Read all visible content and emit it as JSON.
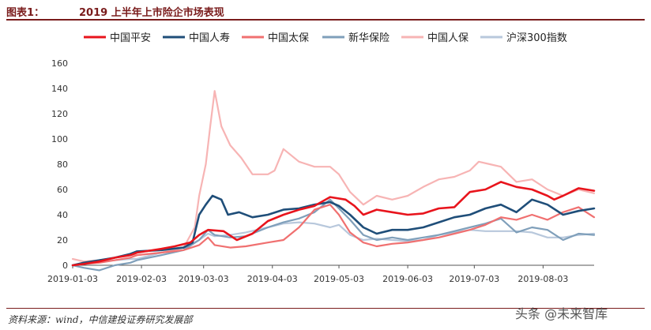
{
  "header": {
    "figure_label": "图表1：",
    "title": "2019 上半年上市险企市场表现"
  },
  "footer": {
    "source": "资料来源：wind，中信建投证券研究发展部",
    "watermark": "头条 @未来智库"
  },
  "chart_data": {
    "type": "line",
    "ylim": [
      0,
      160
    ],
    "yticks": [
      0,
      20,
      40,
      60,
      80,
      100,
      120,
      140,
      160
    ],
    "xlim": [
      "2019-01-03",
      "2019-08-26"
    ],
    "xticks": [
      "2019-01-03",
      "2019-02-03",
      "2019-03-03",
      "2019-04-03",
      "2019-05-03",
      "2019-06-03",
      "2019-07-03",
      "2019-08-03"
    ],
    "legend_position": "top",
    "grid": false,
    "series": [
      {
        "name": "中国平安",
        "color": "#e8141c",
        "width": 2.6,
        "points": [
          [
            "2019-01-03",
            0
          ],
          [
            "2019-01-08",
            1
          ],
          [
            "2019-01-15",
            3
          ],
          [
            "2019-01-22",
            6
          ],
          [
            "2019-01-29",
            8
          ],
          [
            "2019-02-01",
            10
          ],
          [
            "2019-02-12",
            13
          ],
          [
            "2019-02-18",
            15
          ],
          [
            "2019-02-25",
            18
          ],
          [
            "2019-03-01",
            24
          ],
          [
            "2019-03-05",
            28
          ],
          [
            "2019-03-12",
            27
          ],
          [
            "2019-03-18",
            20
          ],
          [
            "2019-03-25",
            25
          ],
          [
            "2019-04-01",
            35
          ],
          [
            "2019-04-08",
            40
          ],
          [
            "2019-04-15",
            44
          ],
          [
            "2019-04-22",
            47
          ],
          [
            "2019-04-29",
            54
          ],
          [
            "2019-05-06",
            52
          ],
          [
            "2019-05-10",
            47
          ],
          [
            "2019-05-14",
            40
          ],
          [
            "2019-05-20",
            44
          ],
          [
            "2019-05-27",
            42
          ],
          [
            "2019-06-03",
            40
          ],
          [
            "2019-06-10",
            41
          ],
          [
            "2019-06-17",
            45
          ],
          [
            "2019-06-24",
            46
          ],
          [
            "2019-07-01",
            58
          ],
          [
            "2019-07-08",
            60
          ],
          [
            "2019-07-15",
            66
          ],
          [
            "2019-07-22",
            62
          ],
          [
            "2019-07-29",
            60
          ],
          [
            "2019-08-05",
            55
          ],
          [
            "2019-08-08",
            52
          ],
          [
            "2019-08-12",
            55
          ],
          [
            "2019-08-19",
            61
          ],
          [
            "2019-08-26",
            59
          ]
        ]
      },
      {
        "name": "中国人寿",
        "color": "#1f4e79",
        "width": 2.6,
        "points": [
          [
            "2019-01-03",
            0
          ],
          [
            "2019-01-08",
            2
          ],
          [
            "2019-01-15",
            4
          ],
          [
            "2019-01-22",
            6
          ],
          [
            "2019-01-29",
            9
          ],
          [
            "2019-02-01",
            11
          ],
          [
            "2019-02-12",
            12
          ],
          [
            "2019-02-22",
            14
          ],
          [
            "2019-02-26",
            18
          ],
          [
            "2019-03-01",
            40
          ],
          [
            "2019-03-04",
            48
          ],
          [
            "2019-03-07",
            55
          ],
          [
            "2019-03-11",
            52
          ],
          [
            "2019-03-14",
            40
          ],
          [
            "2019-03-19",
            42
          ],
          [
            "2019-03-25",
            38
          ],
          [
            "2019-04-01",
            40
          ],
          [
            "2019-04-08",
            44
          ],
          [
            "2019-04-15",
            45
          ],
          [
            "2019-04-22",
            48
          ],
          [
            "2019-04-29",
            50
          ],
          [
            "2019-05-03",
            47
          ],
          [
            "2019-05-08",
            40
          ],
          [
            "2019-05-14",
            30
          ],
          [
            "2019-05-20",
            25
          ],
          [
            "2019-05-27",
            28
          ],
          [
            "2019-06-03",
            28
          ],
          [
            "2019-06-10",
            30
          ],
          [
            "2019-06-17",
            34
          ],
          [
            "2019-06-24",
            38
          ],
          [
            "2019-07-01",
            40
          ],
          [
            "2019-07-08",
            45
          ],
          [
            "2019-07-15",
            48
          ],
          [
            "2019-07-22",
            42
          ],
          [
            "2019-07-29",
            52
          ],
          [
            "2019-08-05",
            48
          ],
          [
            "2019-08-12",
            40
          ],
          [
            "2019-08-19",
            43
          ],
          [
            "2019-08-26",
            45
          ]
        ]
      },
      {
        "name": "中国太保",
        "color": "#f07070",
        "width": 2.2,
        "points": [
          [
            "2019-01-03",
            0
          ],
          [
            "2019-01-08",
            1
          ],
          [
            "2019-01-15",
            2
          ],
          [
            "2019-01-22",
            4
          ],
          [
            "2019-01-29",
            6
          ],
          [
            "2019-02-01",
            8
          ],
          [
            "2019-02-12",
            10
          ],
          [
            "2019-02-22",
            12
          ],
          [
            "2019-03-01",
            16
          ],
          [
            "2019-03-05",
            22
          ],
          [
            "2019-03-08",
            16
          ],
          [
            "2019-03-15",
            14
          ],
          [
            "2019-03-22",
            15
          ],
          [
            "2019-04-01",
            18
          ],
          [
            "2019-04-08",
            20
          ],
          [
            "2019-04-15",
            30
          ],
          [
            "2019-04-22",
            44
          ],
          [
            "2019-04-29",
            48
          ],
          [
            "2019-05-03",
            40
          ],
          [
            "2019-05-08",
            26
          ],
          [
            "2019-05-14",
            18
          ],
          [
            "2019-05-20",
            15
          ],
          [
            "2019-05-27",
            17
          ],
          [
            "2019-06-03",
            18
          ],
          [
            "2019-06-10",
            20
          ],
          [
            "2019-06-17",
            22
          ],
          [
            "2019-06-24",
            25
          ],
          [
            "2019-07-01",
            28
          ],
          [
            "2019-07-08",
            32
          ],
          [
            "2019-07-15",
            38
          ],
          [
            "2019-07-22",
            36
          ],
          [
            "2019-07-29",
            40
          ],
          [
            "2019-08-05",
            36
          ],
          [
            "2019-08-12",
            42
          ],
          [
            "2019-08-19",
            46
          ],
          [
            "2019-08-26",
            38
          ]
        ]
      },
      {
        "name": "新华保险",
        "color": "#7f9fba",
        "width": 2.2,
        "points": [
          [
            "2019-01-03",
            0
          ],
          [
            "2019-01-08",
            -2
          ],
          [
            "2019-01-15",
            -4
          ],
          [
            "2019-01-22",
            0
          ],
          [
            "2019-01-29",
            2
          ],
          [
            "2019-02-01",
            4
          ],
          [
            "2019-02-12",
            8
          ],
          [
            "2019-02-22",
            12
          ],
          [
            "2019-03-01",
            20
          ],
          [
            "2019-03-05",
            28
          ],
          [
            "2019-03-08",
            24
          ],
          [
            "2019-03-15",
            22
          ],
          [
            "2019-03-22",
            23
          ],
          [
            "2019-04-01",
            30
          ],
          [
            "2019-04-08",
            34
          ],
          [
            "2019-04-15",
            37
          ],
          [
            "2019-04-22",
            42
          ],
          [
            "2019-04-29",
            52
          ],
          [
            "2019-05-03",
            45
          ],
          [
            "2019-05-08",
            36
          ],
          [
            "2019-05-14",
            24
          ],
          [
            "2019-05-20",
            20
          ],
          [
            "2019-05-27",
            22
          ],
          [
            "2019-06-03",
            20
          ],
          [
            "2019-06-10",
            22
          ],
          [
            "2019-06-17",
            24
          ],
          [
            "2019-06-24",
            27
          ],
          [
            "2019-07-01",
            30
          ],
          [
            "2019-07-08",
            33
          ],
          [
            "2019-07-15",
            37
          ],
          [
            "2019-07-22",
            26
          ],
          [
            "2019-07-29",
            30
          ],
          [
            "2019-08-05",
            28
          ],
          [
            "2019-08-12",
            20
          ],
          [
            "2019-08-19",
            25
          ],
          [
            "2019-08-26",
            24
          ]
        ]
      },
      {
        "name": "中国人保",
        "color": "#f7b4b4",
        "width": 2.2,
        "points": [
          [
            "2019-01-03",
            5
          ],
          [
            "2019-01-08",
            3
          ],
          [
            "2019-01-15",
            4
          ],
          [
            "2019-01-22",
            6
          ],
          [
            "2019-01-29",
            8
          ],
          [
            "2019-02-01",
            8
          ],
          [
            "2019-02-12",
            10
          ],
          [
            "2019-02-22",
            14
          ],
          [
            "2019-02-27",
            30
          ],
          [
            "2019-03-01",
            55
          ],
          [
            "2019-03-04",
            80
          ],
          [
            "2019-03-06",
            110
          ],
          [
            "2019-03-08",
            138
          ],
          [
            "2019-03-11",
            110
          ],
          [
            "2019-03-15",
            95
          ],
          [
            "2019-03-20",
            85
          ],
          [
            "2019-03-25",
            72
          ],
          [
            "2019-04-01",
            72
          ],
          [
            "2019-04-04",
            75
          ],
          [
            "2019-04-08",
            92
          ],
          [
            "2019-04-15",
            82
          ],
          [
            "2019-04-22",
            78
          ],
          [
            "2019-04-29",
            78
          ],
          [
            "2019-05-03",
            72
          ],
          [
            "2019-05-08",
            58
          ],
          [
            "2019-05-14",
            48
          ],
          [
            "2019-05-20",
            55
          ],
          [
            "2019-05-27",
            52
          ],
          [
            "2019-06-03",
            55
          ],
          [
            "2019-06-10",
            62
          ],
          [
            "2019-06-17",
            68
          ],
          [
            "2019-06-24",
            70
          ],
          [
            "2019-07-01",
            75
          ],
          [
            "2019-07-05",
            82
          ],
          [
            "2019-07-10",
            80
          ],
          [
            "2019-07-15",
            78
          ],
          [
            "2019-07-22",
            66
          ],
          [
            "2019-07-29",
            68
          ],
          [
            "2019-08-05",
            60
          ],
          [
            "2019-08-12",
            55
          ],
          [
            "2019-08-19",
            60
          ],
          [
            "2019-08-26",
            57
          ]
        ]
      },
      {
        "name": "沪深300指数",
        "color": "#b8c8dc",
        "width": 2.2,
        "points": [
          [
            "2019-01-03",
            0
          ],
          [
            "2019-01-08",
            1
          ],
          [
            "2019-01-15",
            3
          ],
          [
            "2019-01-22",
            4
          ],
          [
            "2019-01-29",
            5
          ],
          [
            "2019-02-01",
            5
          ],
          [
            "2019-02-12",
            10
          ],
          [
            "2019-02-22",
            14
          ],
          [
            "2019-03-01",
            20
          ],
          [
            "2019-03-05",
            25
          ],
          [
            "2019-03-08",
            23
          ],
          [
            "2019-03-15",
            24
          ],
          [
            "2019-03-22",
            26
          ],
          [
            "2019-04-01",
            30
          ],
          [
            "2019-04-08",
            33
          ],
          [
            "2019-04-15",
            34
          ],
          [
            "2019-04-22",
            33
          ],
          [
            "2019-04-29",
            30
          ],
          [
            "2019-05-03",
            32
          ],
          [
            "2019-05-08",
            24
          ],
          [
            "2019-05-14",
            20
          ],
          [
            "2019-05-20",
            21
          ],
          [
            "2019-05-27",
            20
          ],
          [
            "2019-06-03",
            19
          ],
          [
            "2019-06-10",
            20
          ],
          [
            "2019-06-17",
            24
          ],
          [
            "2019-06-24",
            26
          ],
          [
            "2019-07-01",
            28
          ],
          [
            "2019-07-08",
            27
          ],
          [
            "2019-07-15",
            27
          ],
          [
            "2019-07-22",
            27
          ],
          [
            "2019-07-29",
            26
          ],
          [
            "2019-08-05",
            22
          ],
          [
            "2019-08-12",
            22
          ],
          [
            "2019-08-19",
            24
          ],
          [
            "2019-08-26",
            25
          ]
        ]
      }
    ]
  }
}
